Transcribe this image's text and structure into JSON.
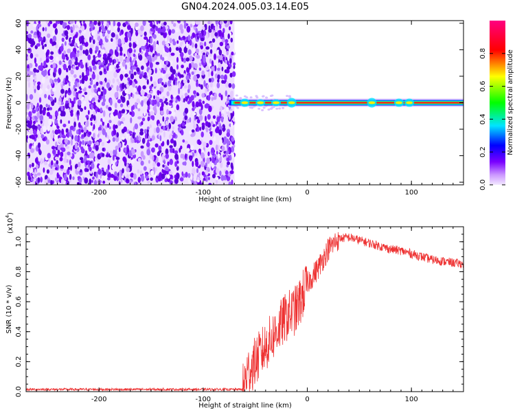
{
  "title": "GN04.2024.005.03.14.E05",
  "colorbar": {
    "label": "Normalized spectral amplitude",
    "ticks": [
      "0.0",
      "0.2",
      "0.4",
      "0.6",
      "0.8"
    ],
    "tick_values": [
      0.0,
      0.2,
      0.4,
      0.6,
      0.8
    ]
  },
  "chart_data": [
    {
      "type": "heatmap",
      "xlabel": "Height of straight line (km)",
      "ylabel": "Frequency (Hz)",
      "xlim": [
        -270,
        150
      ],
      "ylim": [
        -62,
        62
      ],
      "xticks": [
        -200,
        -100,
        0,
        100
      ],
      "xtick_labels": [
        "-200",
        "-100",
        "0",
        "100"
      ],
      "yticks": [
        60,
        40,
        20,
        0,
        -20,
        -40,
        -60
      ],
      "ytick_labels": [
        "60",
        "40",
        "20",
        "0",
        "-20",
        "-40",
        "-60"
      ],
      "noise_region_x": [
        -270,
        -70
      ],
      "signal_band": {
        "x": [
          -75,
          150
        ],
        "frequency": 0,
        "amplitude": 0.85
      },
      "colorscale": [
        "#ffffff",
        "#e6c8ff",
        "#7a00ff",
        "#0000ff",
        "#00e5ff",
        "#00ff00",
        "#ffff00",
        "#ff0000",
        "#ff0080"
      ]
    },
    {
      "type": "line",
      "xlabel": "Height of straight line (km)",
      "ylabel": "SNR (10 * v/v)",
      "yscale_label": "(x10",
      "yscale_exp": "4",
      "yscale_close": ")",
      "xlim": [
        -270,
        150
      ],
      "ylim": [
        0,
        1.1
      ],
      "xticks": [
        -200,
        -100,
        0,
        100
      ],
      "xtick_labels": [
        "-200",
        "-100",
        "0",
        "100"
      ],
      "yticks": [
        0.0,
        0.2,
        0.4,
        0.6,
        0.8,
        1.0
      ],
      "ytick_labels": [
        "0.0",
        "0.2",
        "0.4",
        "0.6",
        "0.8",
        "1.0"
      ],
      "series": [
        {
          "color": "#ee3333",
          "x": [
            -270,
            -200,
            -150,
            -100,
            -62,
            -58,
            -50,
            -40,
            -30,
            -20,
            -10,
            0,
            10,
            20,
            30,
            40,
            50,
            60,
            70,
            80,
            90,
            100,
            110,
            120,
            130,
            140,
            150
          ],
          "y": [
            0.015,
            0.015,
            0.015,
            0.015,
            0.015,
            0.12,
            0.2,
            0.3,
            0.4,
            0.5,
            0.55,
            0.72,
            0.82,
            0.95,
            1.02,
            1.03,
            1.01,
            0.99,
            0.97,
            0.95,
            0.94,
            0.92,
            0.9,
            0.88,
            0.87,
            0.86,
            0.85
          ]
        }
      ]
    }
  ]
}
